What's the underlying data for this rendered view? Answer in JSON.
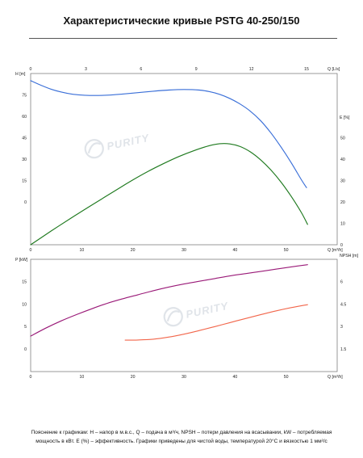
{
  "title": "Характеристические кривые PSTG 40-250/150",
  "watermark": {
    "text": "PURITY"
  },
  "chart_data": [
    {
      "type": "line",
      "grid": false,
      "x": {
        "label": "Q [m³/h]",
        "ticks": [
          0,
          10,
          20,
          30,
          40,
          50
        ],
        "range": [
          0,
          60
        ]
      },
      "x_top": {
        "label": "Q [L/s]",
        "ticks": [
          0,
          3,
          6,
          9,
          12,
          15
        ],
        "range": [
          0,
          16.667
        ]
      },
      "y_left": {
        "label": "H [m]",
        "color": "#3a6fd8",
        "ticks": [
          0,
          15,
          30,
          45,
          60,
          75
        ],
        "range": [
          -30,
          90
        ],
        "points": [
          [
            0,
            85
          ],
          [
            2,
            81.8
          ],
          [
            4,
            79
          ],
          [
            6,
            77
          ],
          [
            8,
            75.6
          ],
          [
            10,
            74.9
          ],
          [
            12,
            74.6
          ],
          [
            15,
            74.8
          ],
          [
            18,
            75.6
          ],
          [
            21,
            76.6
          ],
          [
            24,
            77.6
          ],
          [
            27,
            78.4
          ],
          [
            30,
            78.8
          ],
          [
            33,
            78.4
          ],
          [
            35,
            77.3
          ],
          [
            37,
            75.4
          ],
          [
            39,
            72.5
          ],
          [
            41,
            68.6
          ],
          [
            43,
            63.6
          ],
          [
            45,
            57
          ],
          [
            47,
            48.5
          ],
          [
            49,
            38.5
          ],
          [
            51,
            27.5
          ],
          [
            53,
            15.5
          ],
          [
            54,
            10
          ]
        ]
      },
      "y_right": {
        "label": "E [%]",
        "color": "#1f7a1f",
        "ticks": [
          0,
          10,
          20,
          30,
          40,
          50
        ],
        "range": [
          0,
          80
        ],
        "points": [
          [
            0,
            0
          ],
          [
            4,
            6.4
          ],
          [
            8,
            12.6
          ],
          [
            10,
            15.6
          ],
          [
            12,
            18.6
          ],
          [
            15,
            23
          ],
          [
            18,
            27.4
          ],
          [
            20,
            30.3
          ],
          [
            23,
            34.3
          ],
          [
            26,
            37.9
          ],
          [
            29,
            41.2
          ],
          [
            32,
            44
          ],
          [
            35,
            46.3
          ],
          [
            37,
            47.2
          ],
          [
            39,
            47.1
          ],
          [
            41,
            45.9
          ],
          [
            43,
            43.4
          ],
          [
            45,
            39.7
          ],
          [
            47,
            35
          ],
          [
            49,
            29.3
          ],
          [
            51,
            22.6
          ],
          [
            53,
            15
          ],
          [
            54.2,
            9.5
          ]
        ]
      }
    },
    {
      "type": "line",
      "grid": false,
      "x": {
        "label": "Q [m³/h]",
        "ticks": [
          0,
          10,
          20,
          30,
          40,
          50
        ],
        "range": [
          0,
          60
        ]
      },
      "y_left": {
        "label": "P [kW]",
        "color": "#9a1a78",
        "ticks": [
          0,
          5,
          10,
          15
        ],
        "range": [
          -5,
          20
        ],
        "points": [
          [
            0,
            2.9
          ],
          [
            3,
            4.7
          ],
          [
            6,
            6.3
          ],
          [
            9,
            7.7
          ],
          [
            12,
            9
          ],
          [
            15,
            10.2
          ],
          [
            18,
            11.2
          ],
          [
            21,
            12.1
          ],
          [
            24,
            13
          ],
          [
            27,
            13.8
          ],
          [
            30,
            14.5
          ],
          [
            33,
            15.1
          ],
          [
            36,
            15.7
          ],
          [
            39,
            16.3
          ],
          [
            42,
            16.8
          ],
          [
            45,
            17.3
          ],
          [
            48,
            17.8
          ],
          [
            51,
            18.3
          ],
          [
            54.2,
            18.8
          ]
        ]
      },
      "y_right": {
        "label": "NPSH [m]",
        "color": "#f2664b",
        "ticks": [
          1.5,
          3,
          4.5,
          6
        ],
        "range": [
          0,
          7.5
        ],
        "points": [
          [
            18.5,
            2.1
          ],
          [
            21,
            2.11
          ],
          [
            24,
            2.16
          ],
          [
            27,
            2.3
          ],
          [
            30,
            2.5
          ],
          [
            33,
            2.74
          ],
          [
            36,
            3.0
          ],
          [
            39,
            3.27
          ],
          [
            42,
            3.54
          ],
          [
            45,
            3.8
          ],
          [
            48,
            4.05
          ],
          [
            51,
            4.27
          ],
          [
            54.2,
            4.47
          ]
        ]
      }
    }
  ],
  "footer": {
    "line1": "Пояснение к графикам: H – напор в м.в.с., Q – подача в м³/ч, NPSH – потери давления на всасывании, kW – потребляемая",
    "line2": "мощность в кВт. E (%) – эффективность. Графики приведены для чистой воды, температурой 20°C и вязкостью 1 мм²/с"
  }
}
